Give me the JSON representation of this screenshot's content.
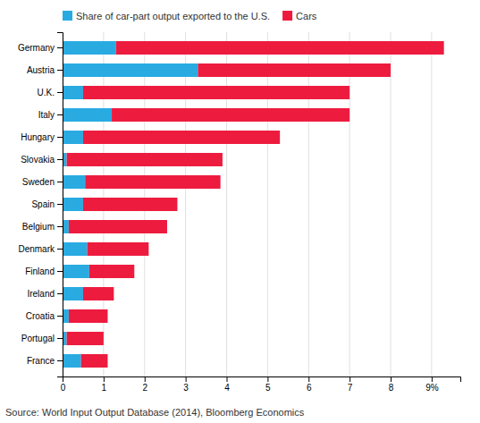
{
  "chart_data": {
    "type": "bar",
    "orientation": "horizontal",
    "stacked": true,
    "categories": [
      "Germany",
      "Austria",
      "U.K.",
      "Italy",
      "Hungary",
      "Slovakia",
      "Sweden",
      "Spain",
      "Belgium",
      "Denmark",
      "Finland",
      "Ireland",
      "Croatia",
      "Portugal",
      "France"
    ],
    "series": [
      {
        "name": "Share of car-part output exported to the U.S.",
        "color": "#29ABE2",
        "values": [
          1.3,
          3.3,
          0.5,
          1.2,
          0.5,
          0.1,
          0.55,
          0.5,
          0.15,
          0.6,
          0.65,
          0.5,
          0.15,
          0.1,
          0.45
        ]
      },
      {
        "name": "Cars",
        "color": "#ED1C3F",
        "values": [
          8.0,
          4.7,
          6.5,
          5.8,
          4.8,
          3.8,
          3.3,
          2.3,
          2.4,
          1.5,
          1.1,
          0.75,
          0.95,
          0.9,
          0.65
        ]
      }
    ],
    "xlim": [
      0,
      9.7
    ],
    "xticks": [
      0,
      1,
      2,
      3,
      4,
      5,
      6,
      7,
      8,
      {
        "value": 9,
        "label": "9%"
      }
    ],
    "grid": true,
    "legend": "top left",
    "annotations": [
      "Source: World Input Output Database (2014), Bloomberg Economics"
    ]
  }
}
